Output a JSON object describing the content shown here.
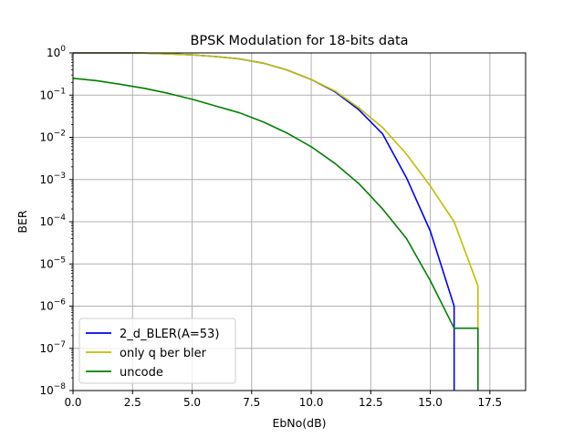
{
  "chart_data": {
    "type": "line",
    "title": "BPSK Modulation for 18-bits data",
    "xlabel": "EbNo(dB)",
    "ylabel": "BER",
    "xlim": [
      0,
      19
    ],
    "ylim_exp": [
      -8,
      0
    ],
    "yscale": "log",
    "grid": true,
    "legend_position": "lower-left",
    "x_ticks": [
      "0.0",
      "2.5",
      "5.0",
      "7.5",
      "10.0",
      "12.5",
      "15.0",
      "17.5"
    ],
    "x_tick_values": [
      0,
      2.5,
      5,
      7.5,
      10,
      12.5,
      15,
      17.5
    ],
    "y_tick_exponents": [
      "0",
      "-1",
      "-2",
      "-3",
      "-4",
      "-5",
      "-6",
      "-7",
      "-8"
    ],
    "y_tick_base": "10",
    "series": [
      {
        "name": "2_d_BLER(A=53)",
        "color": "#0000ff",
        "x": [
          0,
          1,
          2,
          3,
          4,
          5,
          6,
          7,
          8,
          9,
          10,
          11,
          12,
          13,
          14,
          15,
          16,
          16
        ],
        "y": [
          1,
          1,
          1,
          0.99,
          0.95,
          0.9,
          0.82,
          0.72,
          0.57,
          0.39,
          0.235,
          0.12,
          0.045,
          0.012,
          0.0011,
          6e-05,
          1e-06,
          1e-08
        ]
      },
      {
        "name": "only q ber bler",
        "color": "#bfbf00",
        "x": [
          0,
          1,
          2,
          3,
          4,
          5,
          6,
          7,
          8,
          9,
          10,
          11,
          12,
          13,
          14,
          15,
          16,
          17,
          17
        ],
        "y": [
          1,
          1,
          1,
          0.99,
          0.95,
          0.9,
          0.82,
          0.72,
          0.57,
          0.39,
          0.235,
          0.125,
          0.05,
          0.017,
          0.004,
          0.0007,
          0.0001,
          3e-06,
          1e-08
        ]
      },
      {
        "name": "uncode",
        "color": "#008000",
        "x": [
          0,
          1,
          2,
          3,
          4,
          5,
          6,
          7,
          8,
          9,
          10,
          11,
          12,
          13,
          14,
          15,
          16,
          17,
          17
        ],
        "y": [
          0.25,
          0.22,
          0.18,
          0.145,
          0.11,
          0.08,
          0.055,
          0.038,
          0.023,
          0.0125,
          0.006,
          0.0024,
          0.0008,
          0.0002,
          4e-05,
          4e-06,
          3e-07,
          3e-07,
          1e-08
        ]
      }
    ]
  }
}
